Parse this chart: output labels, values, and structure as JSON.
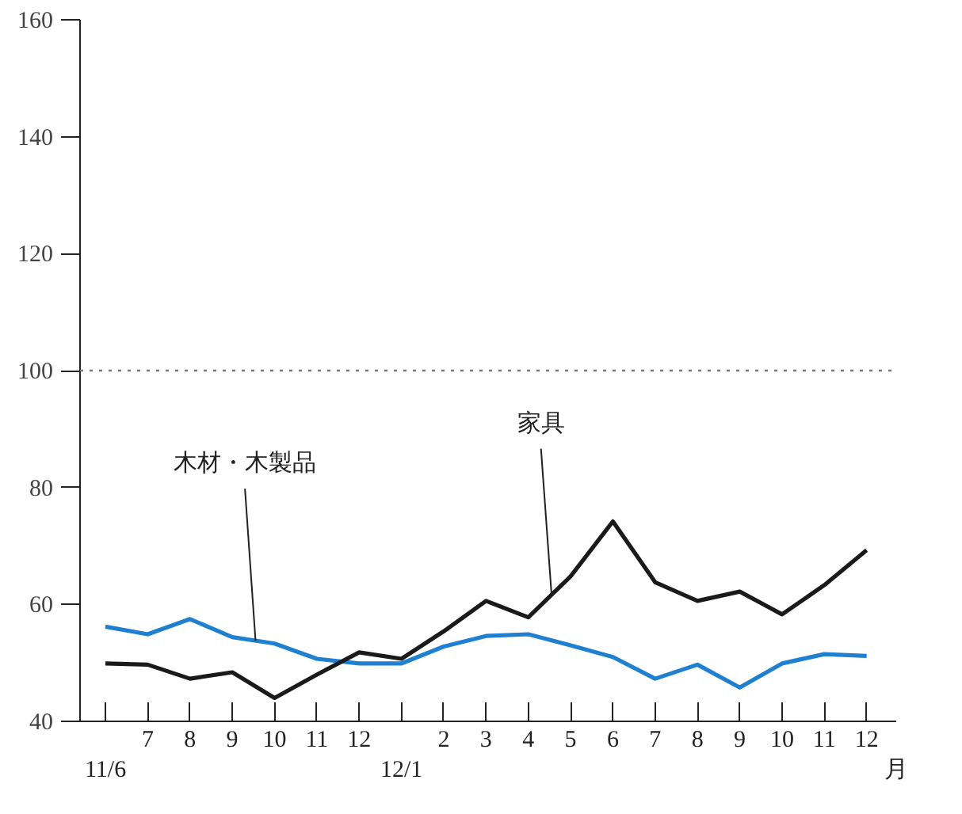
{
  "chart_data": {
    "type": "line",
    "xlabel": "月",
    "categories": [
      "11/6",
      "7",
      "8",
      "9",
      "10",
      "11",
      "12",
      "12/1",
      "2",
      "3",
      "4",
      "5",
      "6",
      "7",
      "8",
      "9",
      "10",
      "11",
      "12"
    ],
    "series": [
      {
        "name": "木材・木製品",
        "color": "#1f7fd0",
        "values": [
          56.2,
          54.9,
          57.5,
          54.4,
          53.3,
          50.7,
          49.9,
          49.9,
          52.8,
          54.6,
          54.9,
          53,
          51,
          47.3,
          49.7,
          45.8,
          49.9,
          51.5,
          51.2
        ]
      },
      {
        "name": "家具",
        "color": "#1a1a1a",
        "values": [
          49.9,
          49.7,
          47.3,
          48.4,
          44,
          48,
          51.8,
          50.7,
          55.4,
          60.6,
          57.8,
          64.8,
          74.2,
          63.8,
          60.6,
          62.2,
          58.3,
          63.3,
          69.3
        ]
      }
    ],
    "ylim": [
      40,
      160
    ],
    "yticks": [
      40,
      60,
      80,
      100,
      120,
      140,
      160
    ],
    "grid": false,
    "legend": false,
    "marker": "none",
    "line_style": "solid",
    "ref_lines": [
      {
        "axis": "y",
        "value": 100,
        "label": null,
        "color": "#777777",
        "line_style": "dotted"
      }
    ]
  }
}
